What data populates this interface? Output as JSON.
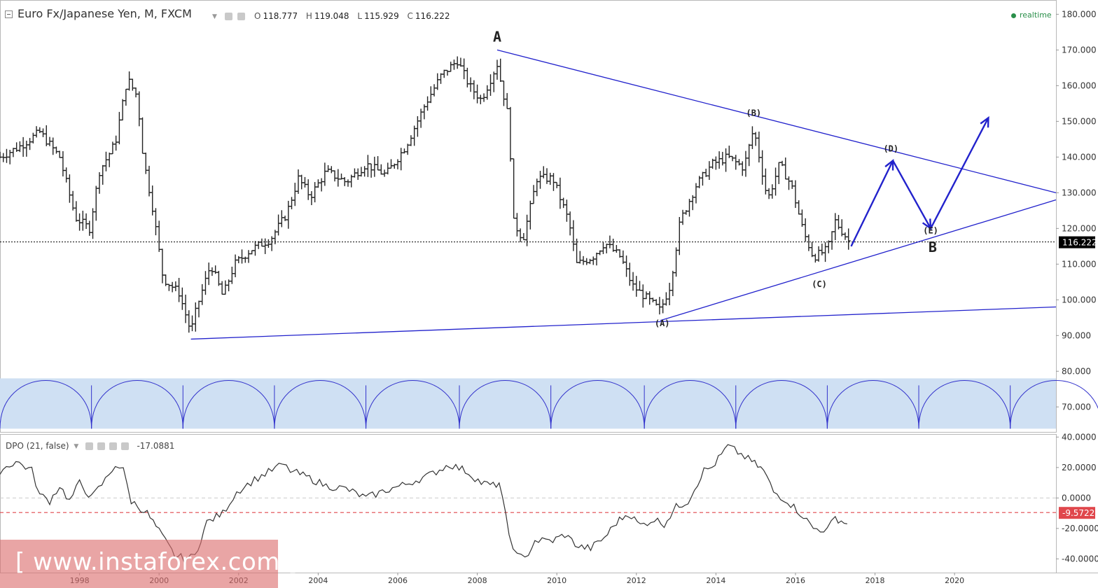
{
  "header": {
    "symbol": "Euro Fx/Japanese Yen, M, FXCM",
    "open_label": "O",
    "open": "118.777",
    "high_label": "H",
    "high": "119.048",
    "low_label": "L",
    "low": "115.929",
    "close_label": "C",
    "close": "116.222",
    "realtime": "realtime"
  },
  "indicator": {
    "name": "DPO (21, false)",
    "value": "-17.0881"
  },
  "watermark": "[ www.instaforex.com ]",
  "colors": {
    "candles": "#222222",
    "trendline": "#2222cc",
    "cycles_fill": "#cfe0f3",
    "cycles_stroke": "#3333cc",
    "dpo_line": "#333333",
    "price_line": "#000000",
    "signal_line": "#e0474c"
  },
  "chart_data": [
    {
      "type": "ohlc",
      "y_axis": {
        "range": [
          63,
          184
        ],
        "ticks": [
          "180.000",
          "170.000",
          "160.000",
          "150.000",
          "140.000",
          "130.000",
          "120.000",
          "110.000",
          "100.000",
          "90.000",
          "80.000",
          "70.000"
        ]
      },
      "x_axis": {
        "range": [
          1996.0,
          2022.55
        ],
        "ticks": [
          "1998",
          "2000",
          "2002",
          "2004",
          "2006",
          "2008",
          "2010",
          "2012",
          "2014",
          "2016",
          "2018",
          "2020"
        ]
      },
      "current_price_label": "116.222",
      "current_price": 116.222,
      "anchors": [
        {
          "x": 1996.0,
          "y": 140
        },
        {
          "x": 1996.5,
          "y": 143
        },
        {
          "x": 1997.0,
          "y": 147
        },
        {
          "x": 1997.5,
          "y": 140
        },
        {
          "x": 1997.9,
          "y": 123
        },
        {
          "x": 1998.25,
          "y": 120
        },
        {
          "x": 1998.5,
          "y": 136
        },
        {
          "x": 1998.9,
          "y": 144
        },
        {
          "x": 1999.2,
          "y": 162
        },
        {
          "x": 1999.45,
          "y": 157
        },
        {
          "x": 1999.6,
          "y": 140
        },
        {
          "x": 1999.85,
          "y": 125
        },
        {
          "x": 2000.1,
          "y": 106
        },
        {
          "x": 2000.5,
          "y": 102
        },
        {
          "x": 2000.8,
          "y": 91
        },
        {
          "x": 2000.95,
          "y": 98
        },
        {
          "x": 2001.3,
          "y": 110
        },
        {
          "x": 2001.6,
          "y": 101
        },
        {
          "x": 2001.9,
          "y": 110
        },
        {
          "x": 2002.3,
          "y": 114
        },
        {
          "x": 2002.8,
          "y": 117
        },
        {
          "x": 2003.2,
          "y": 124
        },
        {
          "x": 2003.5,
          "y": 134
        },
        {
          "x": 2003.8,
          "y": 129
        },
        {
          "x": 2004.2,
          "y": 136
        },
        {
          "x": 2004.7,
          "y": 133
        },
        {
          "x": 2005.2,
          "y": 138
        },
        {
          "x": 2005.7,
          "y": 135
        },
        {
          "x": 2006.2,
          "y": 143
        },
        {
          "x": 2006.7,
          "y": 155
        },
        {
          "x": 2007.1,
          "y": 163
        },
        {
          "x": 2007.5,
          "y": 167
        },
        {
          "x": 2007.8,
          "y": 160
        },
        {
          "x": 2008.1,
          "y": 156
        },
        {
          "x": 2008.5,
          "y": 166
        },
        {
          "x": 2008.8,
          "y": 150
        },
        {
          "x": 2008.9,
          "y": 122
        },
        {
          "x": 2009.15,
          "y": 117
        },
        {
          "x": 2009.5,
          "y": 134
        },
        {
          "x": 2009.9,
          "y": 134
        },
        {
          "x": 2010.3,
          "y": 122
        },
        {
          "x": 2010.5,
          "y": 110
        },
        {
          "x": 2010.9,
          "y": 112
        },
        {
          "x": 2011.2,
          "y": 116
        },
        {
          "x": 2011.6,
          "y": 112
        },
        {
          "x": 2011.9,
          "y": 104
        },
        {
          "x": 2012.3,
          "y": 100
        },
        {
          "x": 2012.6,
          "y": 97
        },
        {
          "x": 2012.85,
          "y": 104
        },
        {
          "x": 2013.1,
          "y": 122
        },
        {
          "x": 2013.5,
          "y": 132
        },
        {
          "x": 2013.9,
          "y": 138
        },
        {
          "x": 2014.3,
          "y": 140
        },
        {
          "x": 2014.7,
          "y": 137
        },
        {
          "x": 2014.95,
          "y": 148
        },
        {
          "x": 2015.3,
          "y": 128
        },
        {
          "x": 2015.6,
          "y": 138
        },
        {
          "x": 2015.9,
          "y": 132
        },
        {
          "x": 2016.2,
          "y": 119
        },
        {
          "x": 2016.45,
          "y": 112
        },
        {
          "x": 2016.8,
          "y": 114
        },
        {
          "x": 2017.0,
          "y": 122
        },
        {
          "x": 2017.25,
          "y": 118
        },
        {
          "x": 2017.35,
          "y": 116.222
        }
      ],
      "wave_labels": [
        {
          "text": "A",
          "x": 2008.5,
          "y": 170
        },
        {
          "text": "(B)",
          "x": 2014.95,
          "y": 150
        },
        {
          "text": "(D)",
          "x": 2018.4,
          "y": 140
        },
        {
          "text": "(E)",
          "x": 2019.4,
          "y": 117
        },
        {
          "text": "B",
          "x": 2019.45,
          "y": 111
        },
        {
          "text": "(C)",
          "x": 2016.6,
          "y": 102
        },
        {
          "text": "(A)",
          "x": 2012.65,
          "y": 91
        }
      ],
      "trendlines": [
        {
          "from": {
            "x": 2008.5,
            "y": 170
          },
          "to": {
            "x": 2022.55,
            "y": 130
          }
        },
        {
          "from": {
            "x": 2012.6,
            "y": 94.2
          },
          "to": {
            "x": 2022.55,
            "y": 128
          }
        },
        {
          "from": {
            "x": 2000.8,
            "y": 89
          },
          "to": {
            "x": 2022.55,
            "y": 98
          }
        }
      ],
      "projection_arrows": [
        {
          "from": {
            "x": 2017.4,
            "y": 115
          },
          "to": {
            "x": 2018.45,
            "y": 139
          }
        },
        {
          "from": {
            "x": 2018.45,
            "y": 139
          },
          "to": {
            "x": 2019.4,
            "y": 120
          }
        },
        {
          "from": {
            "x": 2019.4,
            "y": 120
          },
          "to": {
            "x": 2020.85,
            "y": 151
          }
        }
      ],
      "cycle_boundaries": [
        1998.3,
        2000.6,
        2002.9,
        2005.2,
        2007.55,
        2009.85,
        2012.2,
        2014.5,
        2016.8,
        2019.1,
        2021.4
      ]
    },
    {
      "type": "line",
      "name": "DPO (21, false)",
      "y_axis": {
        "range": [
          -49,
          42
        ],
        "ticks": [
          "40.0000",
          "20.0000",
          "0.0000",
          "-20.0000",
          "-40.0000"
        ]
      },
      "signal_value_label": "-9.5722",
      "signal_value": -9.5722,
      "points": [
        {
          "x": 1996.0,
          "y": 18
        },
        {
          "x": 1996.4,
          "y": 24
        },
        {
          "x": 1996.8,
          "y": 18
        },
        {
          "x": 1997.0,
          "y": 2
        },
        {
          "x": 1997.25,
          "y": -2
        },
        {
          "x": 1997.5,
          "y": 8
        },
        {
          "x": 1997.75,
          "y": -2
        },
        {
          "x": 1998.0,
          "y": 10
        },
        {
          "x": 1998.3,
          "y": 0
        },
        {
          "x": 1998.65,
          "y": 12
        },
        {
          "x": 1998.9,
          "y": 22
        },
        {
          "x": 1999.1,
          "y": 18
        },
        {
          "x": 1999.3,
          "y": -2
        },
        {
          "x": 1999.7,
          "y": -10
        },
        {
          "x": 2000.0,
          "y": -22
        },
        {
          "x": 2000.4,
          "y": -38
        },
        {
          "x": 2000.7,
          "y": -40
        },
        {
          "x": 2000.9,
          "y": -38
        },
        {
          "x": 2001.2,
          "y": -16
        },
        {
          "x": 2001.6,
          "y": -10
        },
        {
          "x": 2001.95,
          "y": 4
        },
        {
          "x": 2002.4,
          "y": 12
        },
        {
          "x": 2003.1,
          "y": 22
        },
        {
          "x": 2003.3,
          "y": 18
        },
        {
          "x": 2003.7,
          "y": 14
        },
        {
          "x": 2004.2,
          "y": 8
        },
        {
          "x": 2004.7,
          "y": 6
        },
        {
          "x": 2005.2,
          "y": 0
        },
        {
          "x": 2005.7,
          "y": 5
        },
        {
          "x": 2006.2,
          "y": 9
        },
        {
          "x": 2006.8,
          "y": 15
        },
        {
          "x": 2007.3,
          "y": 22
        },
        {
          "x": 2007.7,
          "y": 18
        },
        {
          "x": 2008.1,
          "y": 10
        },
        {
          "x": 2008.4,
          "y": 8
        },
        {
          "x": 2008.55,
          "y": 10
        },
        {
          "x": 2008.8,
          "y": -24
        },
        {
          "x": 2009.0,
          "y": -38
        },
        {
          "x": 2009.2,
          "y": -40
        },
        {
          "x": 2009.45,
          "y": -28
        },
        {
          "x": 2009.9,
          "y": -28
        },
        {
          "x": 2010.2,
          "y": -24
        },
        {
          "x": 2010.55,
          "y": -32
        },
        {
          "x": 2010.85,
          "y": -33
        },
        {
          "x": 2011.2,
          "y": -26
        },
        {
          "x": 2011.5,
          "y": -16
        },
        {
          "x": 2011.8,
          "y": -10
        },
        {
          "x": 2012.1,
          "y": -18
        },
        {
          "x": 2012.45,
          "y": -14
        },
        {
          "x": 2012.7,
          "y": -17
        },
        {
          "x": 2013.0,
          "y": -6
        },
        {
          "x": 2013.3,
          "y": -2
        },
        {
          "x": 2013.7,
          "y": 18
        },
        {
          "x": 2013.9,
          "y": 20
        },
        {
          "x": 2014.3,
          "y": 34
        },
        {
          "x": 2014.55,
          "y": 30
        },
        {
          "x": 2014.9,
          "y": 24
        },
        {
          "x": 2015.2,
          "y": 18
        },
        {
          "x": 2015.45,
          "y": 4
        },
        {
          "x": 2015.8,
          "y": -2
        },
        {
          "x": 2016.2,
          "y": -12
        },
        {
          "x": 2016.45,
          "y": -20
        },
        {
          "x": 2016.8,
          "y": -21
        },
        {
          "x": 2017.0,
          "y": -13
        },
        {
          "x": 2017.3,
          "y": -17
        }
      ]
    }
  ]
}
